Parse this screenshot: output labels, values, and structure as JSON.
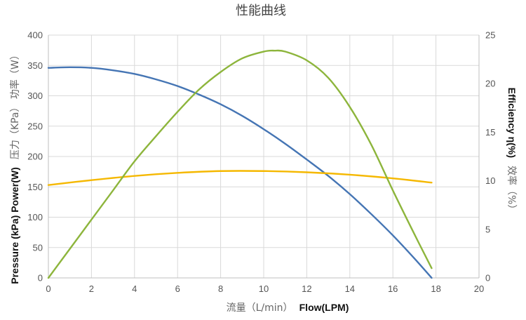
{
  "chart_data": {
    "type": "line",
    "title": "性能曲线",
    "xlabel_cn": "流量（L/min）",
    "xlabel_en": "Flow(LPM)",
    "ylabel_left_cn": "压力（KPa） 功率（W）",
    "ylabel_left_en": "Pressure (kPa) Power(W)",
    "ylabel_right_cn": "效率（%）",
    "ylabel_right_en": "Efficiency η(%)",
    "xlim": [
      0,
      20
    ],
    "ylim_left": [
      0,
      400
    ],
    "ylim_right": [
      0,
      25
    ],
    "x_ticks": [
      0,
      2,
      4,
      6,
      8,
      10,
      12,
      14,
      16,
      18,
      20
    ],
    "y_left_ticks": [
      0,
      50,
      100,
      150,
      200,
      250,
      300,
      350,
      400
    ],
    "y_right_ticks": [
      0,
      5,
      10,
      15,
      20,
      25
    ],
    "grid": true,
    "colors": {
      "power": "#4575b4",
      "pressure": "#f5b800",
      "efficiency": "#8db53c"
    },
    "series": [
      {
        "key": "power",
        "axis": "left",
        "x": [
          0,
          1,
          2,
          3,
          4,
          5,
          6,
          7,
          8,
          9,
          10,
          11,
          12,
          13,
          14,
          15,
          16,
          17,
          17.8
        ],
        "y": [
          346,
          347,
          346,
          342,
          336,
          327,
          316,
          302,
          286,
          267,
          245,
          221,
          195,
          168,
          138,
          105,
          70,
          32,
          0
        ]
      },
      {
        "key": "pressure",
        "axis": "left",
        "x": [
          0,
          2,
          4,
          6,
          8,
          10,
          12,
          14,
          16,
          17.8
        ],
        "y": [
          153,
          161,
          168,
          173,
          176,
          176,
          174,
          170,
          164,
          157
        ]
      },
      {
        "key": "efficiency",
        "axis": "right",
        "x": [
          0,
          1,
          2,
          3,
          4,
          5,
          6,
          7,
          8,
          9,
          10,
          10.5,
          11,
          12,
          13,
          14,
          15,
          16,
          17,
          17.8
        ],
        "y": [
          0,
          3,
          6,
          9,
          12,
          14.6,
          17.1,
          19.4,
          21.2,
          22.6,
          23.3,
          23.4,
          23.3,
          22.4,
          20.6,
          17.6,
          13.7,
          9,
          4.5,
          1
        ]
      }
    ]
  }
}
